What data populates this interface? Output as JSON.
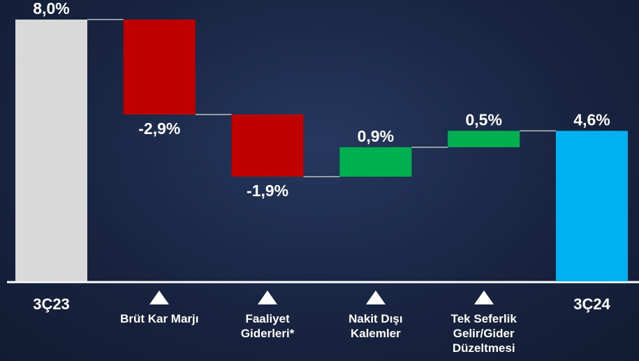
{
  "chart_data": {
    "type": "waterfall",
    "categories": [
      "3Ç23",
      "Brüt Kar Marjı",
      "Faaliyet Giderleri*",
      "Nakit Dışı Kalemler",
      "Tek Seferlik Gelir/Gider Düzeltmesi",
      "3Ç24"
    ],
    "values": [
      8.0,
      -2.9,
      -1.9,
      0.9,
      0.5,
      4.6
    ],
    "value_labels": [
      "8,0%",
      "-2,9%",
      "-1,9%",
      "0,9%",
      "0,5%",
      "4,6%"
    ],
    "colors": [
      "#d9d9d9",
      "#c00000",
      "#c00000",
      "#00b050",
      "#00b050",
      "#00b0f0"
    ],
    "ylim": [
      0,
      8
    ]
  }
}
